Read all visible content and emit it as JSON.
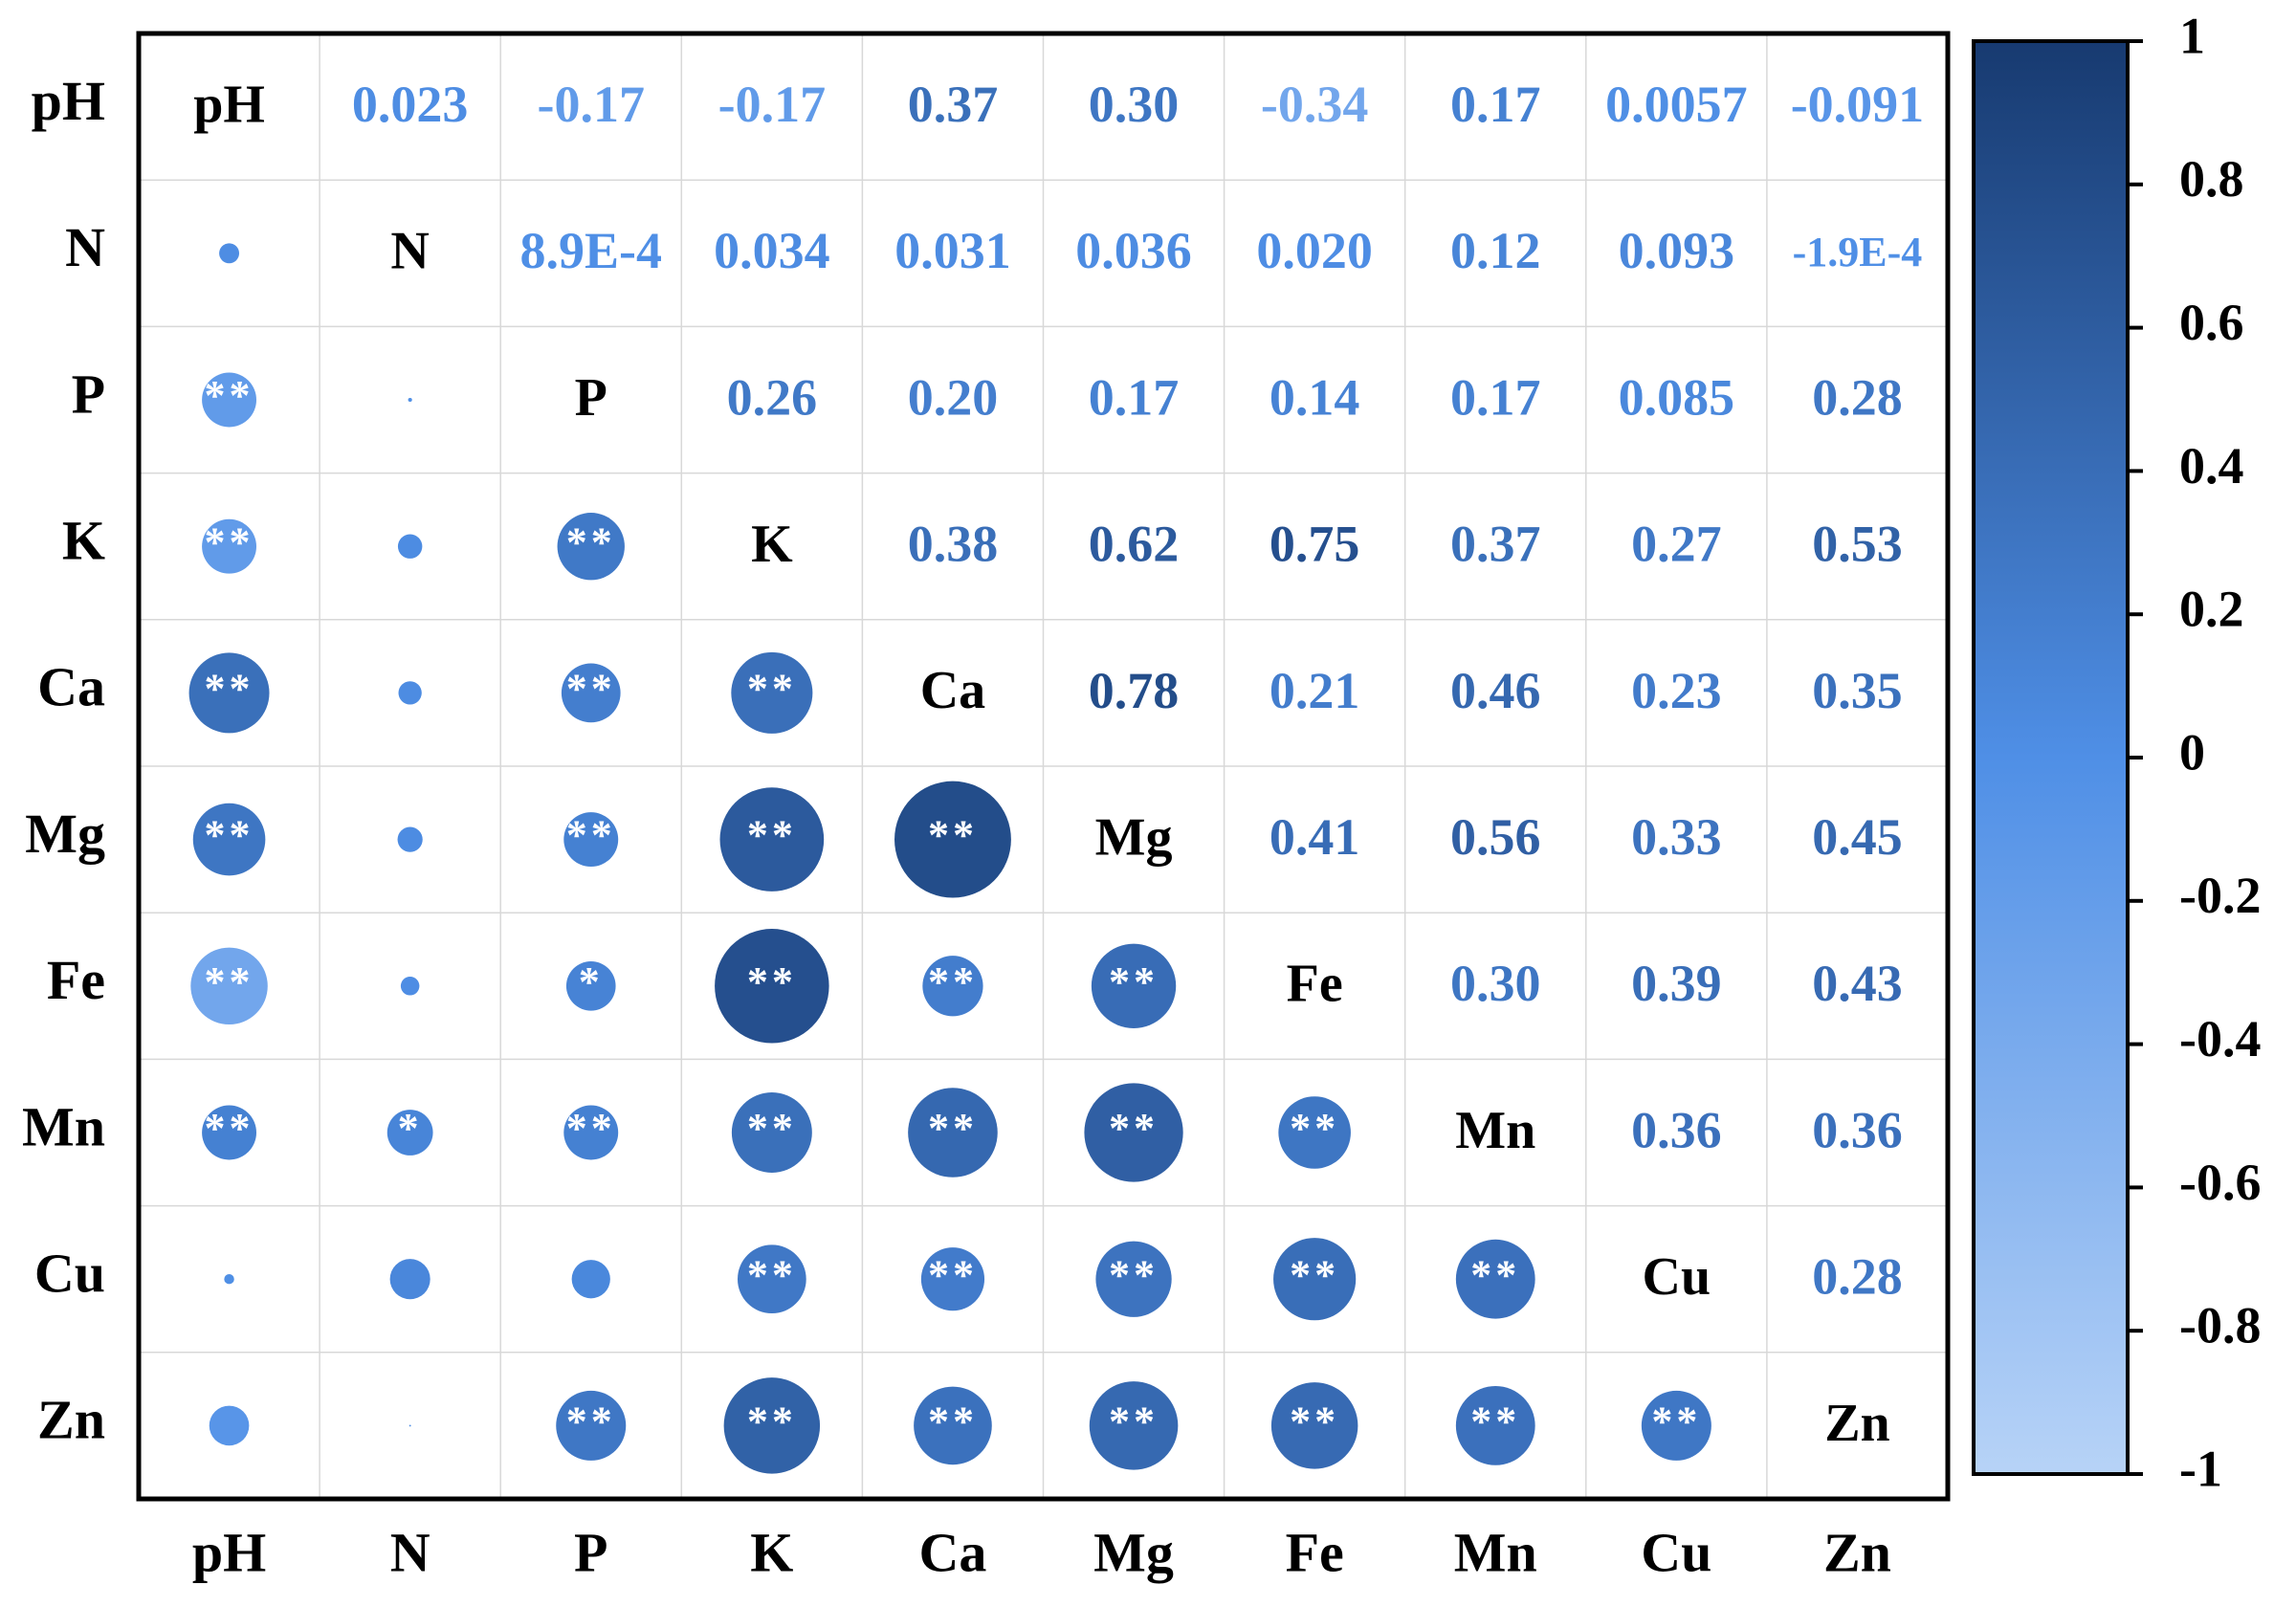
{
  "chart_data": {
    "type": "correlation",
    "variables": [
      "pH",
      "N",
      "P",
      "K",
      "Ca",
      "Mg",
      "Fe",
      "Mn",
      "Cu",
      "Zn"
    ],
    "values": [
      [
        null,
        0.023,
        -0.17,
        -0.17,
        0.37,
        0.3,
        -0.34,
        0.17,
        0.0057,
        -0.091
      ],
      [
        null,
        null,
        0.00089,
        0.034,
        0.031,
        0.036,
        0.02,
        0.12,
        0.093,
        -0.00019
      ],
      [
        null,
        null,
        null,
        0.26,
        0.2,
        0.17,
        0.14,
        0.17,
        0.085,
        0.28
      ],
      [
        null,
        null,
        null,
        null,
        0.38,
        0.62,
        0.75,
        0.37,
        0.27,
        0.53
      ],
      [
        null,
        null,
        null,
        null,
        null,
        0.78,
        0.21,
        0.46,
        0.23,
        0.35
      ],
      [
        null,
        null,
        null,
        null,
        null,
        null,
        0.41,
        0.56,
        0.33,
        0.45
      ],
      [
        null,
        null,
        null,
        null,
        null,
        null,
        null,
        0.3,
        0.39,
        0.43
      ],
      [
        null,
        null,
        null,
        null,
        null,
        null,
        null,
        null,
        0.36,
        0.36
      ],
      [
        null,
        null,
        null,
        null,
        null,
        null,
        null,
        null,
        null,
        0.28
      ],
      [
        null,
        null,
        null,
        null,
        null,
        null,
        null,
        null,
        null,
        null
      ]
    ],
    "value_labels": [
      [
        null,
        "0.023",
        "-0.17",
        "-0.17",
        "0.37",
        "0.30",
        "-0.34",
        "0.17",
        "0.0057",
        "-0.091"
      ],
      [
        null,
        null,
        "8.9E-4",
        "0.034",
        "0.031",
        "0.036",
        "0.020",
        "0.12",
        "0.093",
        "-1.9E-4"
      ],
      [
        null,
        null,
        null,
        "0.26",
        "0.20",
        "0.17",
        "0.14",
        "0.17",
        "0.085",
        "0.28"
      ],
      [
        null,
        null,
        null,
        null,
        "0.38",
        "0.62",
        "0.75",
        "0.37",
        "0.27",
        "0.53"
      ],
      [
        null,
        null,
        null,
        null,
        null,
        "0.78",
        "0.21",
        "0.46",
        "0.23",
        "0.35"
      ],
      [
        null,
        null,
        null,
        null,
        null,
        null,
        "0.41",
        "0.56",
        "0.33",
        "0.45"
      ],
      [
        null,
        null,
        null,
        null,
        null,
        null,
        null,
        "0.30",
        "0.39",
        "0.43"
      ],
      [
        null,
        null,
        null,
        null,
        null,
        null,
        null,
        null,
        "0.36",
        "0.36"
      ],
      [
        null,
        null,
        null,
        null,
        null,
        null,
        null,
        null,
        null,
        "0.28"
      ],
      [
        null,
        null,
        null,
        null,
        null,
        null,
        null,
        null,
        null,
        null
      ]
    ],
    "significance": [
      [
        null,
        null,
        null,
        null,
        null,
        null,
        null,
        null,
        null,
        null
      ],
      [
        null,
        null,
        null,
        null,
        null,
        null,
        null,
        null,
        null,
        null
      ],
      [
        "**",
        null,
        null,
        null,
        null,
        null,
        null,
        null,
        null,
        null
      ],
      [
        "**",
        null,
        "**",
        null,
        null,
        null,
        null,
        null,
        null,
        null
      ],
      [
        "**",
        null,
        "**",
        "**",
        null,
        null,
        null,
        null,
        null,
        null
      ],
      [
        "**",
        null,
        "**",
        "**",
        "**",
        null,
        null,
        null,
        null,
        null
      ],
      [
        "**",
        null,
        "*",
        "**",
        "**",
        "**",
        null,
        null,
        null,
        null
      ],
      [
        "**",
        "*",
        "**",
        "**",
        "**",
        "**",
        "**",
        null,
        null,
        null
      ],
      [
        null,
        null,
        null,
        "**",
        "**",
        "**",
        "**",
        "**",
        null,
        null
      ],
      [
        null,
        null,
        "**",
        "**",
        "**",
        "**",
        "**",
        "**",
        "**",
        null
      ]
    ],
    "colors": [
      "#b7d3f7",
      "#4f8fe6",
      "#173a70"
    ],
    "clim": [
      -1,
      1
    ],
    "cticks": [
      1,
      0.8,
      0.6,
      0.4,
      0.2,
      0,
      -0.2,
      -0.4,
      -0.6,
      -0.8,
      -1
    ]
  }
}
